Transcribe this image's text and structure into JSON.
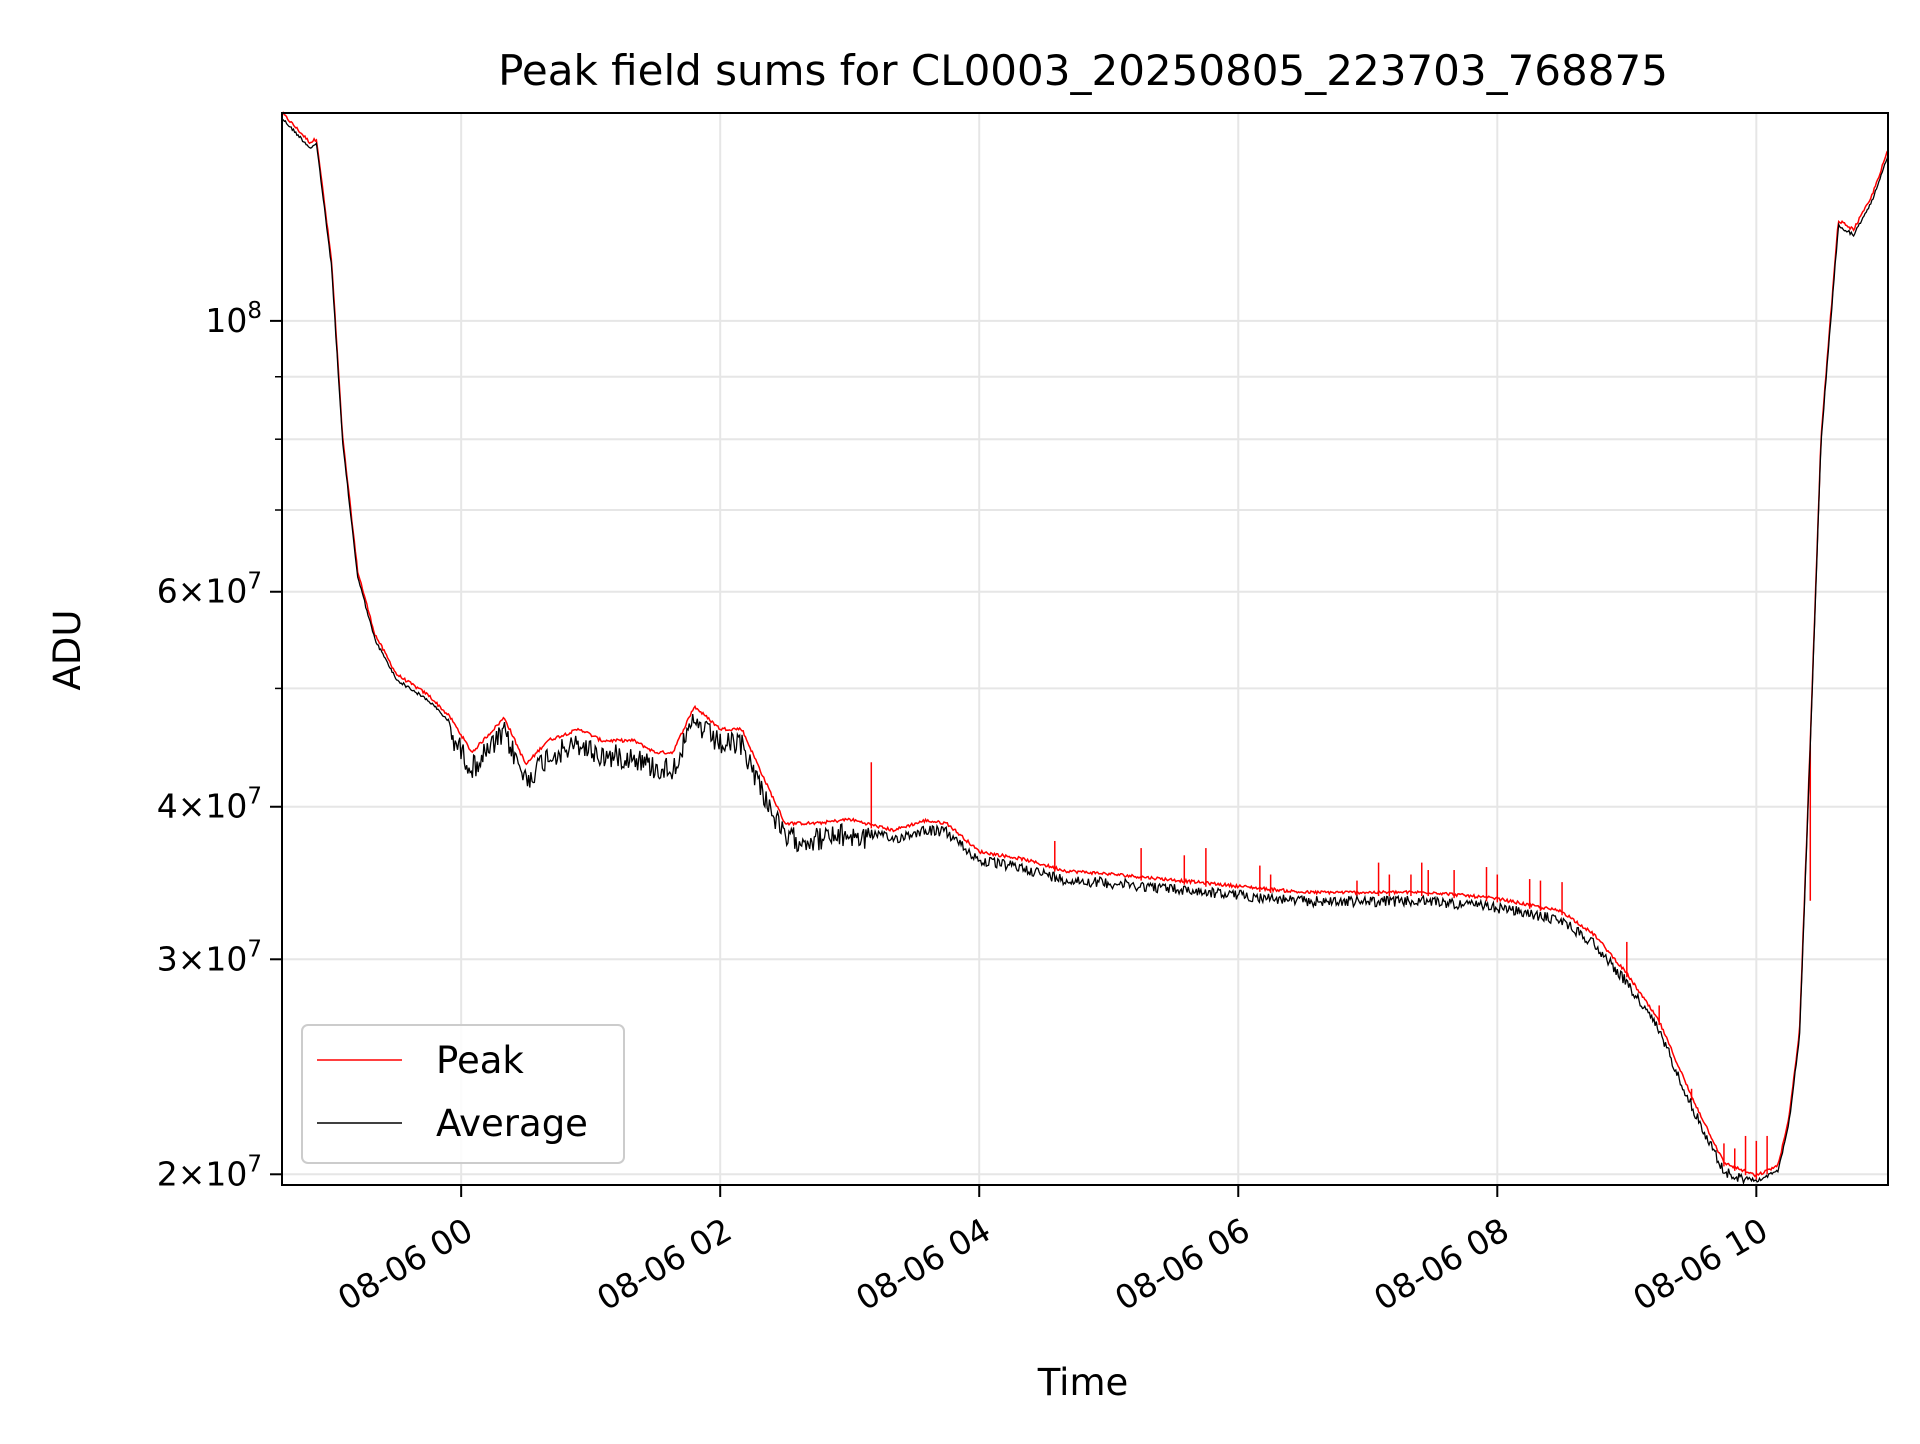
{
  "chart_data": {
    "type": "line",
    "title": "Peak field sums for CL0003_20250805_223703_768875",
    "xlabel": "Time",
    "ylabel": "ADU",
    "x_scale": "time",
    "y_scale": "log",
    "xlim": [
      "2025-08-05 22:37",
      "2025-08-06 11:01"
    ],
    "ylim": [
      19600000,
      148000000
    ],
    "x_tick_labels": [
      "08-06 00",
      "08-06 02",
      "08-06 04",
      "08-06 06",
      "08-06 08",
      "08-06 10"
    ],
    "y_tick_labels": [
      {
        "value": 20000000,
        "mantissa": "2",
        "exponent": "7"
      },
      {
        "value": 30000000,
        "mantissa": "3",
        "exponent": "7"
      },
      {
        "value": 40000000,
        "mantissa": "4",
        "exponent": "7"
      },
      {
        "value": 60000000,
        "mantissa": "6",
        "exponent": "7"
      },
      {
        "value": 100000000,
        "mantissa": "",
        "exponent": "8"
      }
    ],
    "y_minor_gridlines": [
      50000000,
      70000000,
      80000000,
      90000000
    ],
    "grid": true,
    "legend": {
      "location": "lower-left"
    },
    "series": [
      {
        "name": "Peak",
        "color": "#ff0000"
      },
      {
        "name": "Average",
        "color": "#000000"
      }
    ],
    "times": [
      "2025-08-05 22:37",
      "2025-08-05 22:50",
      "2025-08-05 22:53",
      "2025-08-05 23:00",
      "2025-08-05 23:05",
      "2025-08-05 23:12",
      "2025-08-05 23:20",
      "2025-08-05 23:30",
      "2025-08-05 23:45",
      "2025-08-05 23:55",
      "2025-08-06 00:05",
      "2025-08-06 00:20",
      "2025-08-06 00:30",
      "2025-08-06 00:40",
      "2025-08-06 00:55",
      "2025-08-06 01:05",
      "2025-08-06 01:20",
      "2025-08-06 01:30",
      "2025-08-06 01:38",
      "2025-08-06 01:48",
      "2025-08-06 02:00",
      "2025-08-06 02:10",
      "2025-08-06 02:20",
      "2025-08-06 02:30",
      "2025-08-06 02:45",
      "2025-08-06 03:00",
      "2025-08-06 03:20",
      "2025-08-06 03:35",
      "2025-08-06 03:45",
      "2025-08-06 04:00",
      "2025-08-06 04:20",
      "2025-08-06 04:40",
      "2025-08-06 05:00",
      "2025-08-06 05:30",
      "2025-08-06 06:00",
      "2025-08-06 06:30",
      "2025-08-06 07:00",
      "2025-08-06 07:30",
      "2025-08-06 08:00",
      "2025-08-06 08:30",
      "2025-08-06 08:45",
      "2025-08-06 09:00",
      "2025-08-06 09:15",
      "2025-08-06 09:30",
      "2025-08-06 09:45",
      "2025-08-06 10:00",
      "2025-08-06 10:10",
      "2025-08-06 10:15",
      "2025-08-06 10:20",
      "2025-08-06 10:25",
      "2025-08-06 10:30",
      "2025-08-06 10:38",
      "2025-08-06 10:45",
      "2025-08-06 10:53",
      "2025-08-06 11:01"
    ],
    "average": [
      147000000,
      139000000,
      140000000,
      111000000,
      80000000,
      62000000,
      55000000,
      51000000,
      49000000,
      47000000,
      44000000,
      47000000,
      43000000,
      45000000,
      46000000,
      45000000,
      45000000,
      44000000,
      44000000,
      48000000,
      46000000,
      46000000,
      42000000,
      38500000,
      38500000,
      38800000,
      38000000,
      38700000,
      38500000,
      36500000,
      36000000,
      35200000,
      35000000,
      34600000,
      34200000,
      33800000,
      33800000,
      33800000,
      33400000,
      32600000,
      31200000,
      29000000,
      26500000,
      23000000,
      20300000,
      19800000,
      20200000,
      22000000,
      26000000,
      45000000,
      80000000,
      120000000,
      118000000,
      125000000,
      137000000
    ],
    "peak_offsets": [
      {
        "time": "2025-08-06 03:10",
        "value": 43500000
      },
      {
        "time": "2025-08-06 04:35",
        "value": 37500000
      },
      {
        "time": "2025-08-06 05:15",
        "value": 37000000
      },
      {
        "time": "2025-08-06 05:35",
        "value": 36500000
      },
      {
        "time": "2025-08-06 05:45",
        "value": 37000000
      },
      {
        "time": "2025-08-06 06:10",
        "value": 35800000
      },
      {
        "time": "2025-08-06 06:15",
        "value": 35200000
      },
      {
        "time": "2025-08-06 06:55",
        "value": 34800000
      },
      {
        "time": "2025-08-06 07:05",
        "value": 36000000
      },
      {
        "time": "2025-08-06 07:10",
        "value": 35200000
      },
      {
        "time": "2025-08-06 07:20",
        "value": 35200000
      },
      {
        "time": "2025-08-06 07:25",
        "value": 36000000
      },
      {
        "time": "2025-08-06 07:28",
        "value": 35500000
      },
      {
        "time": "2025-08-06 07:40",
        "value": 35500000
      },
      {
        "time": "2025-08-06 07:55",
        "value": 35700000
      },
      {
        "time": "2025-08-06 08:00",
        "value": 35200000
      },
      {
        "time": "2025-08-06 08:15",
        "value": 34900000
      },
      {
        "time": "2025-08-06 08:20",
        "value": 34800000
      },
      {
        "time": "2025-08-06 08:30",
        "value": 34700000
      },
      {
        "time": "2025-08-06 09:00",
        "value": 31000000
      },
      {
        "time": "2025-08-06 09:15",
        "value": 27500000
      },
      {
        "time": "2025-08-06 09:30",
        "value": 23500000
      },
      {
        "time": "2025-08-06 09:45",
        "value": 21200000
      },
      {
        "time": "2025-08-06 09:50",
        "value": 21000000
      },
      {
        "time": "2025-08-06 09:55",
        "value": 21500000
      },
      {
        "time": "2025-08-06 10:00",
        "value": 21300000
      },
      {
        "time": "2025-08-06 10:05",
        "value": 21500000
      },
      {
        "time": "2025-08-06 10:25",
        "value": 33500000
      }
    ]
  }
}
